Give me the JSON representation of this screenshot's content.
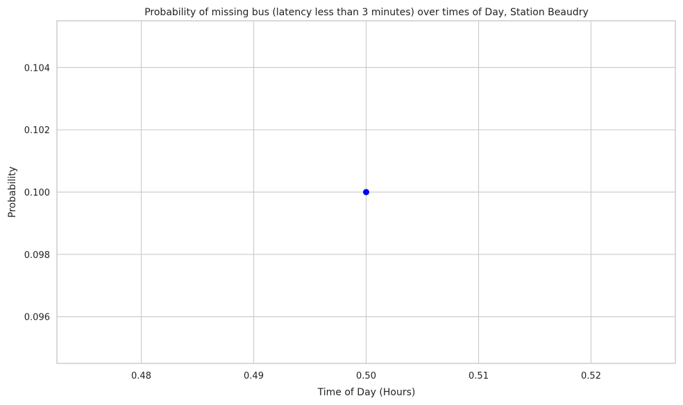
{
  "chart_data": {
    "type": "scatter",
    "title": "Probability of missing bus (latency less than 3 minutes) over times of Day, Station Beaudry",
    "xlabel": "Time of Day (Hours)",
    "ylabel": "Probability",
    "xlim": [
      0.4725,
      0.5275
    ],
    "ylim": [
      0.0945,
      0.1055
    ],
    "x_ticks": [
      0.48,
      0.49,
      0.5,
      0.51,
      0.52
    ],
    "x_tick_labels": [
      "0.48",
      "0.49",
      "0.50",
      "0.51",
      "0.52"
    ],
    "y_ticks": [
      0.096,
      0.098,
      0.1,
      0.102,
      0.104
    ],
    "y_tick_labels": [
      "0.096",
      "0.098",
      "0.100",
      "0.102",
      "0.104"
    ],
    "grid": true,
    "series": [
      {
        "points": [
          {
            "x": 0.5,
            "y": 0.1
          }
        ],
        "color": "#0000ff"
      }
    ]
  }
}
